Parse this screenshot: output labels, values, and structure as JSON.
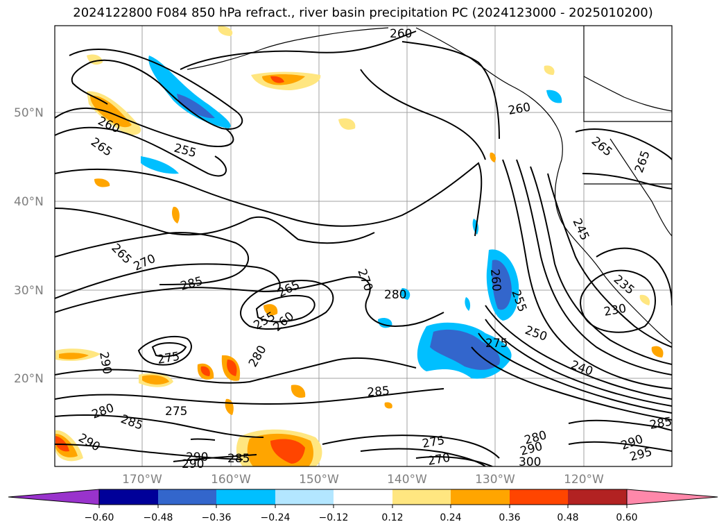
{
  "title": "2024122800 F084 850 hPa refract., river basin precipitation PC (2024123000 - 2025010200)",
  "map": {
    "latitude_labels": [
      "50°N",
      "40°N",
      "30°N",
      "20°N"
    ],
    "longitude_labels": [
      "170°W",
      "160°W",
      "150°W",
      "140°W",
      "130°W",
      "120°W"
    ],
    "contour_labels": [
      "260",
      "265",
      "255",
      "260",
      "270",
      "285",
      "265",
      "270",
      "280",
      "265",
      "255",
      "260",
      "290",
      "275",
      "280",
      "285",
      "290",
      "275",
      "280",
      "285",
      "290",
      "290",
      "285",
      "270",
      "275",
      "280",
      "290",
      "300",
      "250",
      "240",
      "230",
      "235",
      "245",
      "260",
      "255",
      "265",
      "265",
      "260",
      "285",
      "290",
      "295",
      "275"
    ],
    "colors": {
      "contour": "#000000",
      "gridline": "#a0a0a0",
      "coast": "#000000"
    }
  },
  "colorbar": {
    "ticks": [
      "−0.60",
      "−0.48",
      "−0.36",
      "−0.24",
      "−0.12",
      "0.12",
      "0.24",
      "0.36",
      "0.48",
      "0.60"
    ],
    "colors": [
      "#9933cc",
      "#000099",
      "#3366cc",
      "#00bfff",
      "#b3e6ff",
      "#ffffff",
      "#ffe680",
      "#ffa500",
      "#ff4500",
      "#b22222",
      "#ff88aa"
    ]
  }
}
